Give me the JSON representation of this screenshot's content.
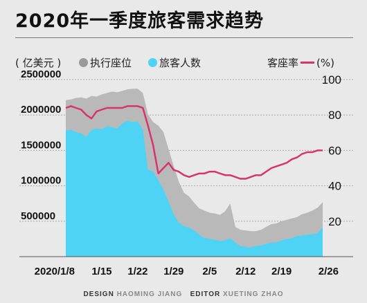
{
  "header": {
    "title": "2020年一季度旅客需求趋势"
  },
  "legend": {
    "unit": "( 亿美元 )",
    "seats_label": "执行座位",
    "passengers_label": "旅客人数",
    "load_factor_label": "客座率",
    "load_factor_unit": "(%)"
  },
  "colors": {
    "seats": "#b9b9b9",
    "passengers": "#4fd3f5",
    "load_factor": "#d8336c",
    "background": "#e9e9e9"
  },
  "credit": {
    "design_label": "DESIGN",
    "design_name": "HAOMING JIANG",
    "editor_label": "EDITOR",
    "editor_name": "XUETING ZHAO"
  },
  "chart_data": {
    "type": "area",
    "title": "2020年一季度旅客需求趋势",
    "x": [
      "2020/1/8",
      "1/9",
      "1/10",
      "1/11",
      "1/12",
      "1/13",
      "1/14",
      "1/15",
      "1/16",
      "1/17",
      "1/18",
      "1/19",
      "1/20",
      "1/21",
      "1/22",
      "1/23",
      "1/24",
      "1/25",
      "1/26",
      "1/27",
      "1/28",
      "1/29",
      "1/30",
      "1/31",
      "2/1",
      "2/2",
      "2/3",
      "2/4",
      "2/5",
      "2/6",
      "2/7",
      "2/8",
      "2/9",
      "2/10",
      "2/11",
      "2/12",
      "2/13",
      "2/14",
      "2/15",
      "2/16",
      "2/17",
      "2/18",
      "2/19",
      "2/20",
      "2/21",
      "2/22",
      "2/23",
      "2/24",
      "2/25",
      "2/26",
      "2/27"
    ],
    "x_tick_labels": [
      "2020/1/8",
      "1/15",
      "1/22",
      "1/29",
      "2/5",
      "2/12",
      "2/19",
      "2/26"
    ],
    "x_tick_indices": [
      0,
      7,
      14,
      21,
      28,
      35,
      42,
      49
    ],
    "y_left_ticks": [
      500000,
      1000000,
      1500000,
      2000000,
      2500000
    ],
    "y_left_range": [
      0,
      2500000
    ],
    "y_right_ticks": [
      20,
      40,
      60,
      80,
      100
    ],
    "y_right_range": [
      0,
      100
    ],
    "series": [
      {
        "name": "执行座位",
        "axis": "left",
        "kind": "area",
        "values": [
          2210000,
          2220000,
          2240000,
          2250000,
          2230000,
          2270000,
          2260000,
          2290000,
          2310000,
          2330000,
          2320000,
          2340000,
          2360000,
          2370000,
          2370000,
          2310000,
          2010000,
          1900000,
          1850000,
          1760000,
          1520000,
          1280000,
          1060000,
          900000,
          850000,
          760000,
          680000,
          650000,
          620000,
          610000,
          590000,
          640000,
          750000,
          420000,
          380000,
          370000,
          360000,
          360000,
          380000,
          420000,
          460000,
          470000,
          500000,
          520000,
          540000,
          560000,
          600000,
          620000,
          650000,
          690000,
          770000
        ]
      },
      {
        "name": "旅客人数",
        "axis": "left",
        "kind": "area",
        "values": [
          1780000,
          1790000,
          1760000,
          1740000,
          1690000,
          1790000,
          1810000,
          1800000,
          1840000,
          1830000,
          1810000,
          1880000,
          1920000,
          1900000,
          1910000,
          1790000,
          1230000,
          1200000,
          1080000,
          950000,
          780000,
          600000,
          480000,
          430000,
          410000,
          370000,
          310000,
          260000,
          250000,
          240000,
          220000,
          230000,
          260000,
          200000,
          150000,
          140000,
          130000,
          150000,
          160000,
          180000,
          200000,
          200000,
          230000,
          250000,
          260000,
          290000,
          300000,
          310000,
          320000,
          330000,
          420000
        ]
      },
      {
        "name": "客座率",
        "axis": "right",
        "kind": "line",
        "values": [
          84,
          85,
          84,
          83,
          80,
          78,
          82,
          83,
          84,
          84,
          84,
          84,
          85,
          85,
          85,
          84,
          74,
          63,
          47,
          50,
          53,
          49,
          48,
          46,
          45,
          46,
          47,
          47,
          48,
          48,
          47,
          46,
          46,
          45,
          44,
          44,
          45,
          46,
          46,
          48,
          50,
          51,
          52,
          53,
          55,
          56,
          58,
          59,
          59,
          60,
          60
        ]
      }
    ],
    "grid": "horizontal"
  }
}
